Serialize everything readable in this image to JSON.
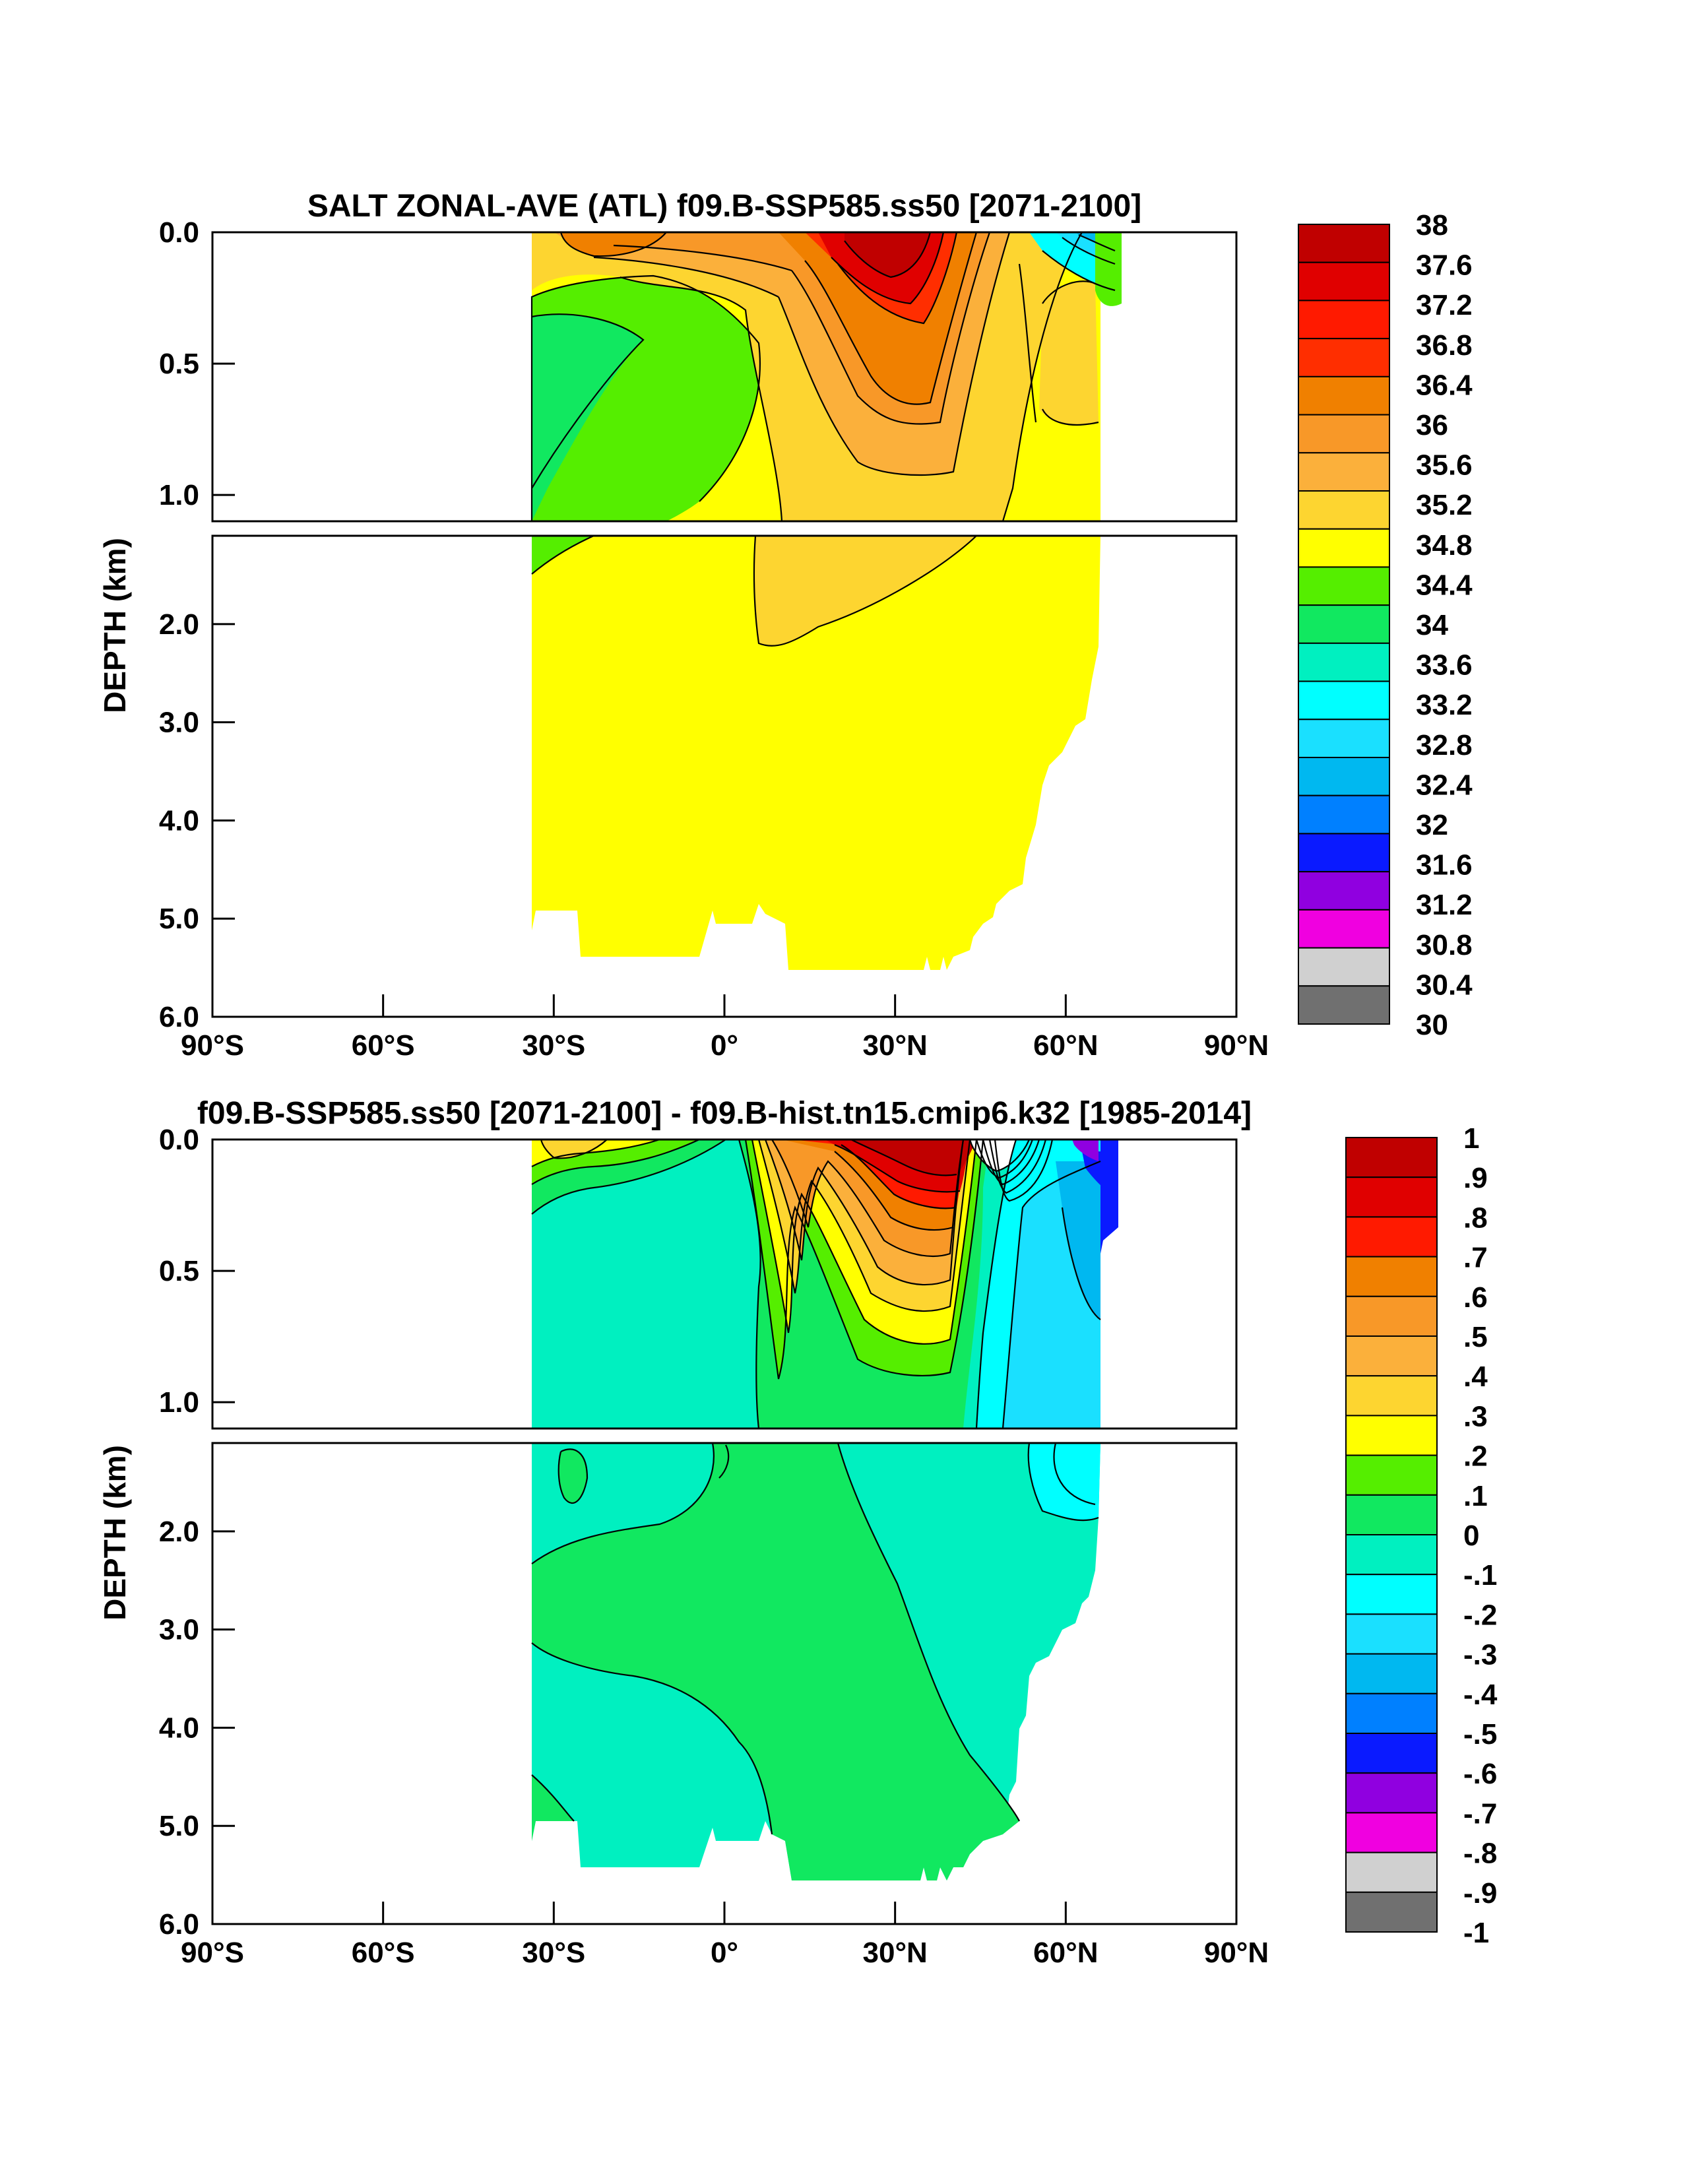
{
  "chart_data": [
    {
      "type": "contour",
      "title": "SALT ZONAL-AVE (ATL) f09.B-SSP585.ss50 [2071-2100]",
      "ylabel": "DEPTH (km)",
      "xlabel": "",
      "x_ticks": [
        "90°S",
        "60°S",
        "30°S",
        "0°",
        "30°N",
        "60°N",
        "90°N"
      ],
      "x_tick_values": [
        -90,
        -60,
        -30,
        0,
        30,
        60,
        90
      ],
      "xlim": [
        -90,
        90
      ],
      "upper_y_ticks": [
        "0.0",
        "0.5",
        "1.0"
      ],
      "upper_y_tick_values": [
        0.0,
        0.5,
        1.0
      ],
      "upper_ylim": [
        0,
        1.1
      ],
      "lower_y_ticks": [
        "2.0",
        "3.0",
        "4.0",
        "5.0",
        "6.0"
      ],
      "lower_y_tick_values": [
        2.0,
        3.0,
        4.0,
        5.0,
        6.0
      ],
      "lower_ylim": [
        1.1,
        6.0
      ],
      "colorbar_labels": [
        "38",
        "37.6",
        "37.2",
        "36.8",
        "36.4",
        "36",
        "35.6",
        "35.2",
        "34.8",
        "34.4",
        "34",
        "33.6",
        "33.2",
        "32.8",
        "32.4",
        "32",
        "31.6",
        "31.2",
        "30.8",
        "30.4",
        "30"
      ],
      "ocean_extent_lat": [
        -34,
        68
      ],
      "approx_fields": [
        {
          "region": "deep ocean below 1.5 km",
          "value_range": [
            34.8,
            35.2
          ]
        },
        {
          "region": "subtropical North Atlantic surface near 25N",
          "value_range": [
            37.6,
            38.0
          ]
        },
        {
          "region": "South Atlantic intermediate water 0.2-1.1 km near 20S",
          "value_range": [
            34.4,
            34.8
          ]
        }
      ]
    },
    {
      "type": "contour",
      "title": "f09.B-SSP585.ss50 [2071-2100] - f09.B-hist.tn15.cmip6.k32 [1985-2014]",
      "ylabel": "DEPTH (km)",
      "xlabel": "",
      "x_ticks": [
        "90°S",
        "60°S",
        "30°S",
        "0°",
        "30°N",
        "60°N",
        "90°N"
      ],
      "x_tick_values": [
        -90,
        -60,
        -30,
        0,
        30,
        60,
        90
      ],
      "xlim": [
        -90,
        90
      ],
      "upper_y_ticks": [
        "0.0",
        "0.5",
        "1.0"
      ],
      "upper_y_tick_values": [
        0.0,
        0.5,
        1.0
      ],
      "upper_ylim": [
        0,
        1.1
      ],
      "lower_y_ticks": [
        "2.0",
        "3.0",
        "4.0",
        "5.0",
        "6.0"
      ],
      "lower_y_tick_values": [
        2.0,
        3.0,
        4.0,
        5.0,
        6.0
      ],
      "lower_ylim": [
        1.1,
        6.0
      ],
      "colorbar_labels": [
        "1",
        ".9",
        ".8",
        ".7",
        ".6",
        ".5",
        ".4",
        ".3",
        ".2",
        ".1",
        "0",
        "-.1",
        "-.2",
        "-.3",
        "-.4",
        "-.5",
        "-.6",
        "-.7",
        "-.8",
        "-.9",
        "-1"
      ],
      "ocean_extent_lat": [
        -34,
        68
      ],
      "approx_fields": [
        {
          "region": "deep ocean below 1.5 km",
          "value_range": [
            -0.1,
            0.1
          ]
        },
        {
          "region": "subtropical North Atlantic 0-0.5 km near 25N",
          "value_range": [
            0.9,
            1.0
          ]
        },
        {
          "region": "subpolar North Atlantic 50-65N",
          "value_range": [
            -0.3,
            -0.1
          ]
        }
      ]
    }
  ],
  "colors": {
    "salt_colorbar": [
      "#c00000",
      "#e00000",
      "#ff1a00",
      "#ff2e00",
      "#f08000",
      "#f89828",
      "#fbb03b",
      "#fdd530",
      "#ffff00",
      "#55ee00",
      "#11e860",
      "#00f0c0",
      "#00ffff",
      "#1ae0ff",
      "#00b8f0",
      "#0080ff",
      "#0a1aff",
      "#9000e0",
      "#f000e0",
      "#d0d0d0",
      "#707070"
    ],
    "diff_colorbar": [
      "#c00000",
      "#e00000",
      "#ff1a00",
      "#f08000",
      "#f89828",
      "#fbb03b",
      "#fdd530",
      "#ffff00",
      "#55ee00",
      "#11e860",
      "#00f0c0",
      "#00ffff",
      "#1ae0ff",
      "#00b8f0",
      "#0080ff",
      "#0a1aff",
      "#9000e0",
      "#f000e0",
      "#d0d0d0",
      "#707070"
    ]
  }
}
